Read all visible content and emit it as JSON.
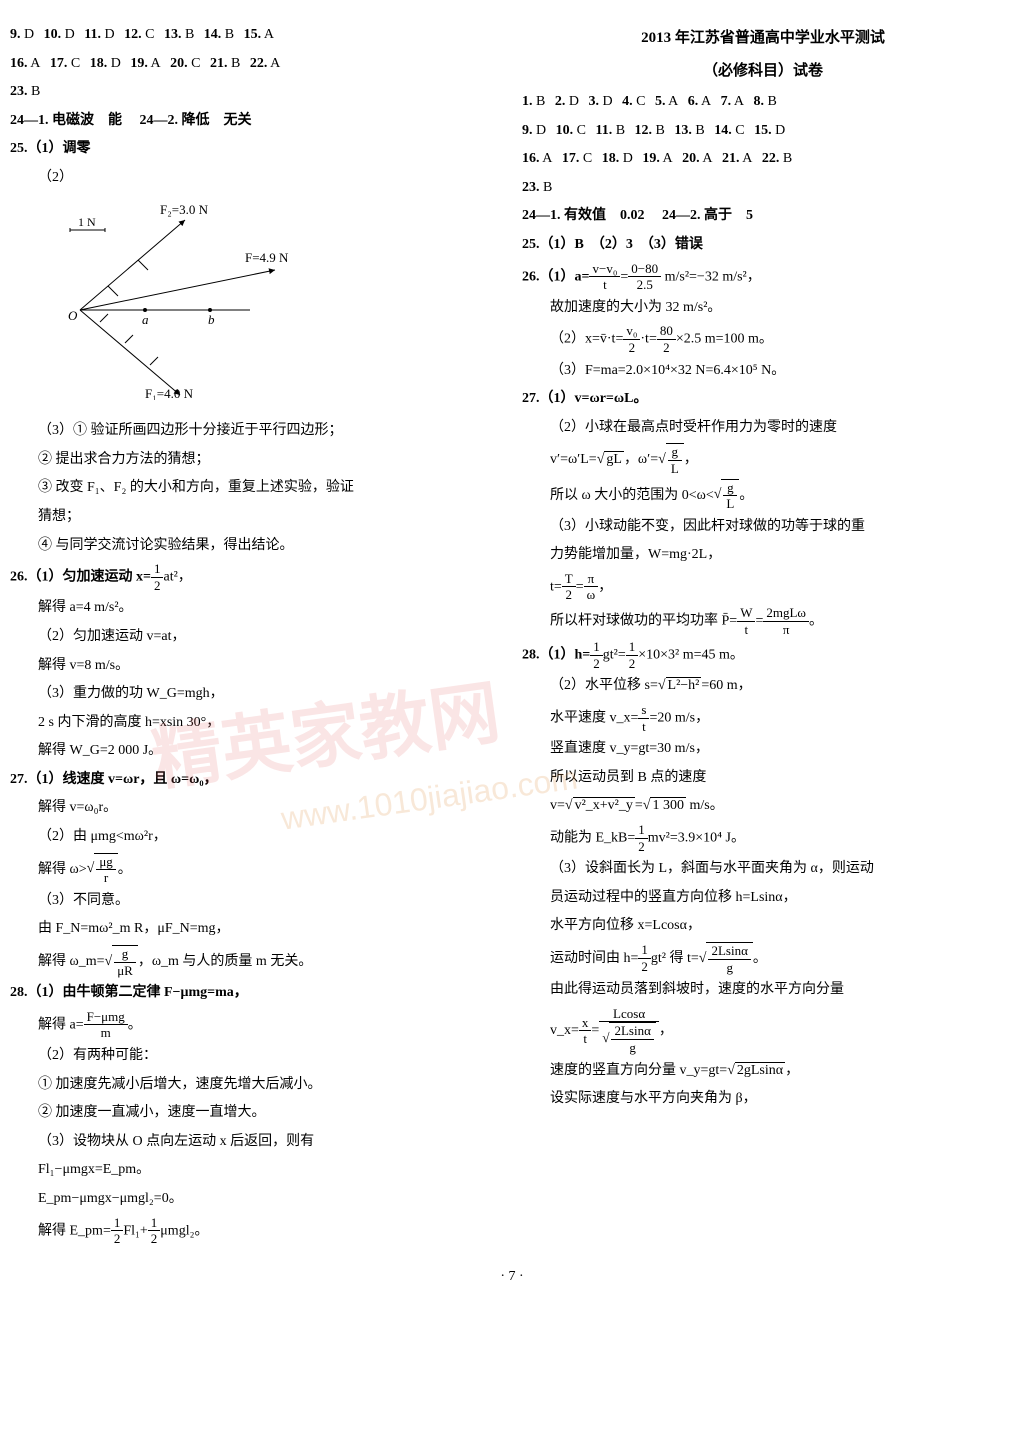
{
  "left": {
    "answers1": [
      {
        "n": "9",
        "a": "D"
      },
      {
        "n": "10",
        "a": "D"
      },
      {
        "n": "11",
        "a": "D"
      },
      {
        "n": "12",
        "a": "C"
      },
      {
        "n": "13",
        "a": "B"
      },
      {
        "n": "14",
        "a": "B"
      },
      {
        "n": "15",
        "a": "A"
      }
    ],
    "answers2": [
      {
        "n": "16",
        "a": "A"
      },
      {
        "n": "17",
        "a": "C"
      },
      {
        "n": "18",
        "a": "D"
      },
      {
        "n": "19",
        "a": "A"
      },
      {
        "n": "20",
        "a": "C"
      },
      {
        "n": "21",
        "a": "B"
      },
      {
        "n": "22",
        "a": "A"
      }
    ],
    "answers3": [
      {
        "n": "23",
        "a": "B"
      }
    ],
    "q24_1": "24—1. 电磁波　能",
    "q24_2": "24—2. 降低　无关",
    "q25_1": "25.（1）调零",
    "q25_2": "（2）",
    "diagram": {
      "F2_label": "F₂=3.0 N",
      "scale": "1 N",
      "F_label": "F=4.9 N",
      "F1_label": "F₁=4.0 N",
      "points": [
        "O",
        "a",
        "b"
      ],
      "colors": {
        "line": "#000",
        "bg": "#fff"
      }
    },
    "q25_3_1": "（3）① 验证所画四边形十分接近于平行四边形；",
    "q25_3_2": "② 提出求合力方法的猜想；",
    "q25_3_3": "③ 改变 F₁、F₂ 的大小和方向，重复上述实验，验证",
    "q25_3_3b": "猜想；",
    "q25_3_4": "④ 与同学交流讨论实验结果，得出结论。",
    "q26_1a": "26.（1）匀加速运动 x=",
    "q26_1b": "at²，",
    "q26_1c": "解得 a=4 m/s²。",
    "q26_2a": "（2）匀加速运动 v=at，",
    "q26_2b": "解得 v=8 m/s。",
    "q26_3a": "（3）重力做的功 W_G=mgh，",
    "q26_3b": "2 s 内下滑的高度 h=xsin 30°，",
    "q26_3c": "解得 W_G=2 000 J。",
    "q27_1a": "27.（1）线速度 v=ωr，且 ω=ω₀，",
    "q27_1b": "解得 v=ω₀r。",
    "q27_2a": "（2）由 μmg<mω²r，",
    "q27_2b_pre": "解得 ω>",
    "q27_2b_num": "μg",
    "q27_2b_den": "r",
    "q27_2b_post": "。",
    "q27_3a": "（3）不同意。",
    "q27_3b": "由 F_N=mω²_m R，μF_N=mg，",
    "q27_3c_pre": "解得 ω_m=",
    "q27_3c_num": "g",
    "q27_3c_den": "μR",
    "q27_3c_post": "，ω_m 与人的质量 m 无关。",
    "q28_1a": "28.（1）由牛顿第二定律 F−μmg=ma，",
    "q28_1b_pre": "解得 a=",
    "q28_1b_num": "F−μmg",
    "q28_1b_den": "m",
    "q28_1b_post": "。",
    "q28_2a": "（2）有两种可能：",
    "q28_2b": "① 加速度先减小后增大，速度先增大后减小。",
    "q28_2c": "② 加速度一直减小，速度一直增大。",
    "q28_3a": "（3）设物块从 O 点向左运动 x 后返回，则有",
    "q28_3b": "Fl₁−μmgx=E_pm。",
    "q28_3c": "E_pm−μmgx−μmgl₂=0。",
    "q28_3d_pre": "解得 E_pm=",
    "q28_3d_mid": "Fl₁+",
    "q28_3d_post": "μmgl₂。",
    "half": {
      "num": "1",
      "den": "2"
    }
  },
  "right": {
    "title1": "2013 年江苏省普通高中学业水平测试",
    "title2": "（必修科目）试卷",
    "answers1": [
      {
        "n": "1",
        "a": "B"
      },
      {
        "n": "2",
        "a": "D"
      },
      {
        "n": "3",
        "a": "D"
      },
      {
        "n": "4",
        "a": "C"
      },
      {
        "n": "5",
        "a": "A"
      },
      {
        "n": "6",
        "a": "A"
      },
      {
        "n": "7",
        "a": "A"
      },
      {
        "n": "8",
        "a": "B"
      }
    ],
    "answers2": [
      {
        "n": "9",
        "a": "D"
      },
      {
        "n": "10",
        "a": "C"
      },
      {
        "n": "11",
        "a": "B"
      },
      {
        "n": "12",
        "a": "B"
      },
      {
        "n": "13",
        "a": "B"
      },
      {
        "n": "14",
        "a": "C"
      },
      {
        "n": "15",
        "a": "D"
      }
    ],
    "answers3": [
      {
        "n": "16",
        "a": "A"
      },
      {
        "n": "17",
        "a": "C"
      },
      {
        "n": "18",
        "a": "D"
      },
      {
        "n": "19",
        "a": "A"
      },
      {
        "n": "20",
        "a": "A"
      },
      {
        "n": "21",
        "a": "A"
      },
      {
        "n": "22",
        "a": "B"
      }
    ],
    "answers4": [
      {
        "n": "23",
        "a": "B"
      }
    ],
    "q24_1": "24—1. 有效值　0.02",
    "q24_2": "24—2. 高于　5",
    "q25": "25.（1）B　（2）3　（3）错误",
    "q26_1a": "26.（1）a=",
    "q26_1_num": "v−v₀",
    "q26_1_den": "t",
    "q26_1_eq": "=",
    "q26_1_num2": "0−80",
    "q26_1_den2": "2.5",
    "q26_1_post": " m/s²=−32 m/s²，",
    "q26_1b": "故加速度的大小为 32 m/s²。",
    "q26_2a_pre": "（2）x=v̄·t=",
    "q26_2a_num": "v₀",
    "q26_2a_den": "2",
    "q26_2a_mid": "·t=",
    "q26_2a_num2": "80",
    "q26_2a_den2": "2",
    "q26_2a_post": "×2.5 m=100 m。",
    "q26_3": "（3）F=ma=2.0×10⁴×32 N=6.4×10⁵ N。",
    "q27_1": "27.（1）v=ωr=ωL。",
    "q27_2a": "（2）小球在最高点时受杆作用力为零时的速度",
    "q27_2b_pre": "v′=ω′L=",
    "q27_2b_sqrt": "gL",
    "q27_2b_mid": "，ω′=",
    "q27_2b_num": "g",
    "q27_2b_den": "L",
    "q27_2b_post": "，",
    "q27_2c_pre": "所以 ω 大小的范围为 0<ω<",
    "q27_2c_num": "g",
    "q27_2c_den": "L",
    "q27_2c_post": "。",
    "q27_3a": "（3）小球动能不变，因此杆对球做的功等于球的重",
    "q27_3a2": "力势能增加量，W=mg·2L，",
    "q27_3b_pre": "t=",
    "q27_3b_num": "T",
    "q27_3b_den": "2",
    "q27_3b_eq": "=",
    "q27_3b_num2": "π",
    "q27_3b_den2": "ω",
    "q27_3b_post": "，",
    "q27_3c_pre": "所以杆对球做功的平均功率 P̄=",
    "q27_3c_num": "W",
    "q27_3c_den": "t",
    "q27_3c_eq": "=",
    "q27_3c_num2": "2mgLω",
    "q27_3c_den2": "π",
    "q27_3c_post": "。",
    "q28_1_pre": "28.（1）h=",
    "q28_1_mid": "gt²=",
    "q28_1_post": "×10×3² m=45 m。",
    "q28_2a_pre": "（2）水平位移 s=",
    "q28_2a_sqrt": "L²−h²",
    "q28_2a_post": "=60 m，",
    "q28_2b_pre": "水平速度 v_x=",
    "q28_2b_num": "s",
    "q28_2b_den": "t",
    "q28_2b_post": "=20 m/s，",
    "q28_2c": "竖直速度 v_y=gt=30 m/s，",
    "q28_2d": "所以运动员到 B 点的速度",
    "q28_2e_pre": "v=",
    "q28_2e_sqrt": "v²_x+v²_y",
    "q28_2e_eq": "=",
    "q28_2e_sqrt2": "1 300",
    "q28_2e_post": " m/s。",
    "q28_2f_pre": "动能为 E_kB=",
    "q28_2f_post": "mv²=3.9×10⁴ J。",
    "q28_3a": "（3）设斜面长为 L，斜面与水平面夹角为 α，则运动",
    "q28_3a2": "员运动过程中的竖直方向位移 h=Lsinα，",
    "q28_3b": "水平方向位移 x=Lcosα，",
    "q28_3c_pre": "运动时间由 h=",
    "q28_3c_mid": "gt² 得 t=",
    "q28_3c_num": "2Lsinα",
    "q28_3c_den": "g",
    "q28_3c_post": "。",
    "q28_3d": "由此得运动员落到斜坡时，速度的水平方向分量",
    "q28_3e_pre": "v_x=",
    "q28_3e_num": "x",
    "q28_3e_den": "t",
    "q28_3e_eq": "=",
    "q28_3e_num2": "Lcosα",
    "q28_3e_den2_num": "2Lsinα",
    "q28_3e_den2_den": "g",
    "q28_3e_post": "，",
    "q28_3f_pre": "速度的竖直方向分量 v_y=gt=",
    "q28_3f_sqrt": "2gLsinα",
    "q28_3f_post": "，",
    "q28_3g": "设实际速度与水平方向夹角为 β，"
  },
  "pagenum": "· 7 ·",
  "watermark": "精英家教网",
  "watermark2": "www.1010jiajiao.com"
}
